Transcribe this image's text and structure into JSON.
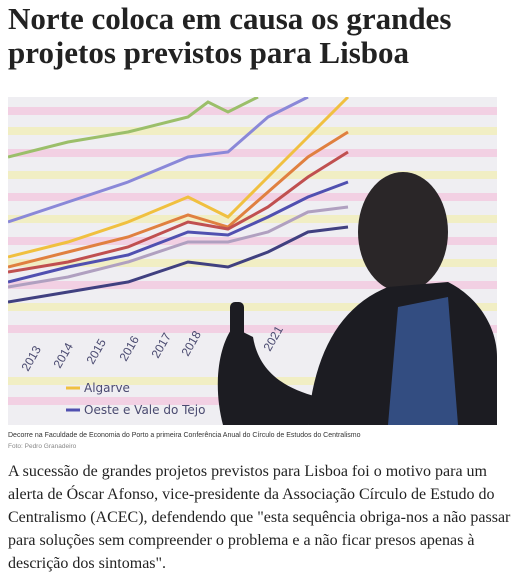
{
  "header": {
    "title": "Norte coloca em causa os grandes projetos previstos para Lisboa"
  },
  "photo": {
    "years": [
      "2013",
      "2014",
      "2015",
      "2016",
      "2017",
      "2018",
      "2021"
    ],
    "legend": [
      "Algarve",
      "Oeste e Vale do Tejo"
    ]
  },
  "caption": {
    "text": "Decorre na Faculdade de Economia do Porto a primeira Conferência Anual do Círculo de Estudos do Centralismo",
    "credit": "Foto: Pedro Granadeiro"
  },
  "body": "A sucessão de grandes projetos previstos para Lisboa foi o motivo para um alerta de Óscar Afonso, vice-presidente da Associação Círculo de Estudo do Centralismo (ACEC), defendendo que \"esta sequência obriga-nos a não passar para soluções sem compreender o problema e a não ficar presos apenas à descrição dos sintomas\"."
}
